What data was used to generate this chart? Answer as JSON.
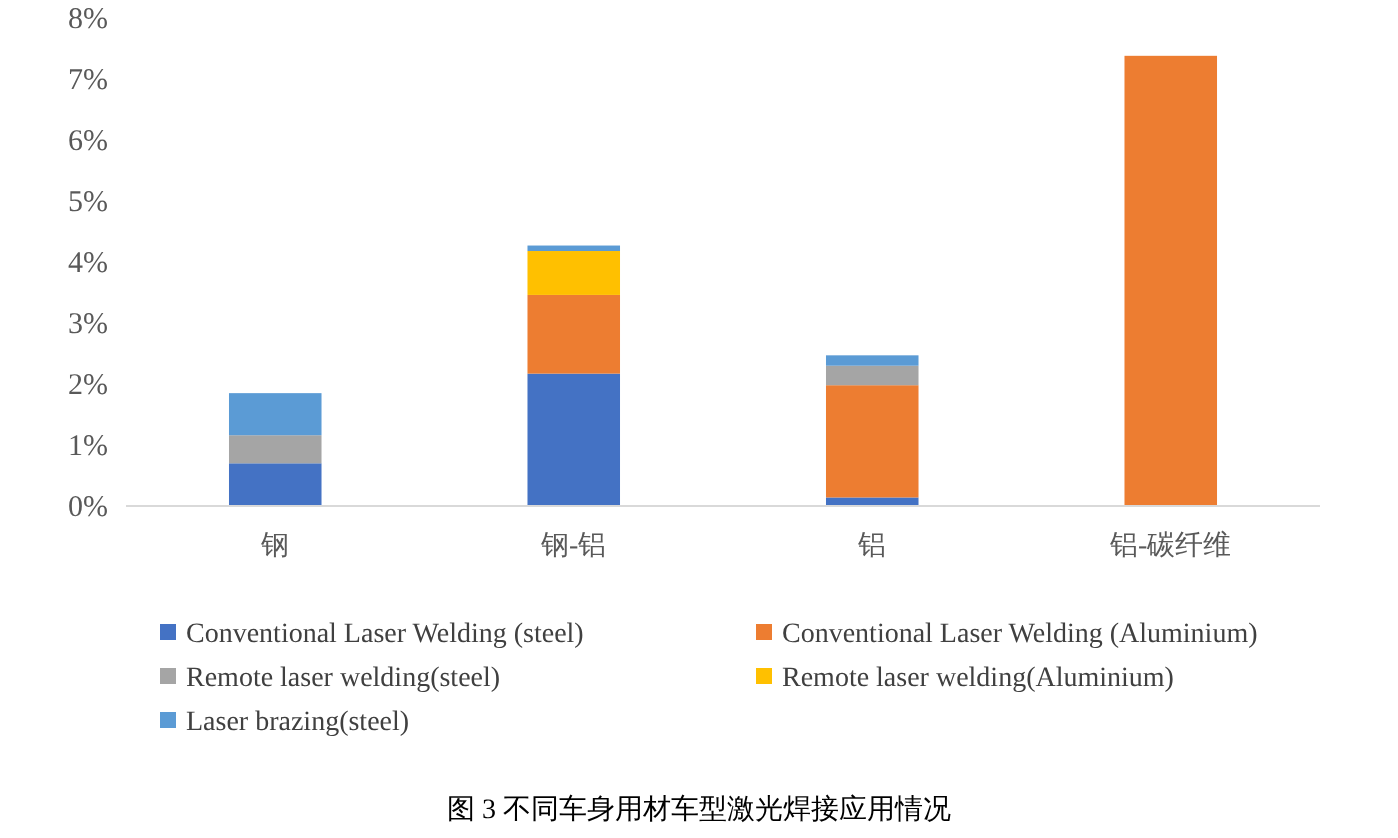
{
  "chart_data": {
    "type": "bar",
    "stacked": true,
    "categories": [
      "钢",
      "钢-铝",
      "铝",
      "铝-碳纤维"
    ],
    "series": [
      {
        "name": "Conventional Laser Welding (steel)",
        "color": "#4472c4",
        "values": [
          0.7,
          2.17,
          0.14,
          null
        ]
      },
      {
        "name": "Conventional Laser Welding (Aluminium)",
        "color": "#ed7d31",
        "values": [
          null,
          1.29,
          1.84,
          7.38
        ]
      },
      {
        "name": "Remote laser welding(steel)",
        "color": "#a5a5a5",
        "values": [
          0.46,
          null,
          0.32,
          null
        ]
      },
      {
        "name": "Remote laser welding(Aluminium)",
        "color": "#ffc000",
        "values": [
          null,
          0.72,
          null,
          null
        ]
      },
      {
        "name": "Laser brazing(steel)",
        "color": "#5b9bd5",
        "values": [
          0.69,
          0.09,
          0.17,
          null
        ]
      }
    ],
    "ylim": [
      0,
      8
    ],
    "yticks": [
      {
        "value": 0,
        "label": "0%"
      },
      {
        "value": 1,
        "label": "1%"
      },
      {
        "value": 2,
        "label": "2%"
      },
      {
        "value": 3,
        "label": "3%"
      },
      {
        "value": 4,
        "label": "4%"
      },
      {
        "value": 5,
        "label": "5%"
      },
      {
        "value": 6,
        "label": "6%"
      },
      {
        "value": 7,
        "label": "7%"
      },
      {
        "value": 8,
        "label": "8%"
      }
    ],
    "grid": false,
    "legend": "bottom",
    "annotations": [
      "图 3 不同车身用材车型激光焊接应用情况"
    ]
  }
}
